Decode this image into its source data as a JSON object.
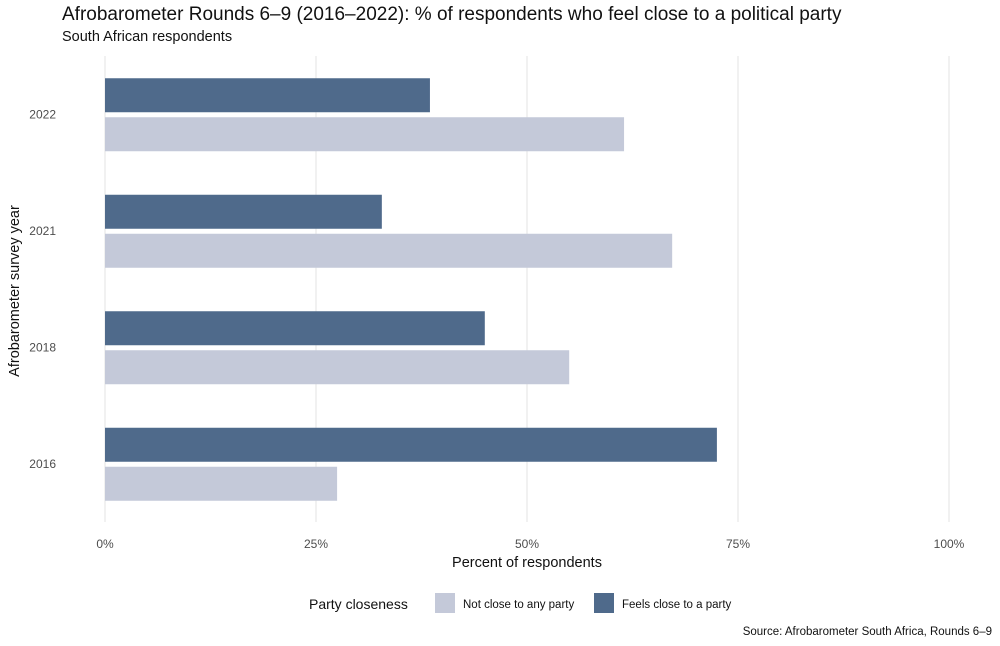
{
  "title": "Afrobarometer Rounds 6–9 (2016–2022): % of respondents who feel close to a political party",
  "subtitle": "South African respondents",
  "source": "Source: Afrobarometer South Africa, Rounds 6–9",
  "chart_data": {
    "type": "bar",
    "orientation": "horizontal",
    "categories": [
      "2016",
      "2018",
      "2021",
      "2022"
    ],
    "series": [
      {
        "name": "Feels close to a party",
        "values": [
          72.5,
          45,
          32.8,
          38.5
        ],
        "color": "#4f6a8b"
      },
      {
        "name": "Not close to any party",
        "values": [
          27.5,
          55,
          67.2,
          61.5
        ],
        "color": "#c4c9d9"
      }
    ],
    "xlabel": "Percent of respondents",
    "ylabel": "Afrobarometer survey year",
    "xlim": [
      0,
      100
    ],
    "x_ticks": [
      0,
      25,
      50,
      75,
      100
    ],
    "x_tick_labels": [
      "0%",
      "25%",
      "50%",
      "75%",
      "100%"
    ],
    "grid": "vertical-major",
    "legend": {
      "title": "Party closeness",
      "position": "bottom",
      "order": [
        "Not close to any party",
        "Feels close to a party"
      ]
    }
  }
}
